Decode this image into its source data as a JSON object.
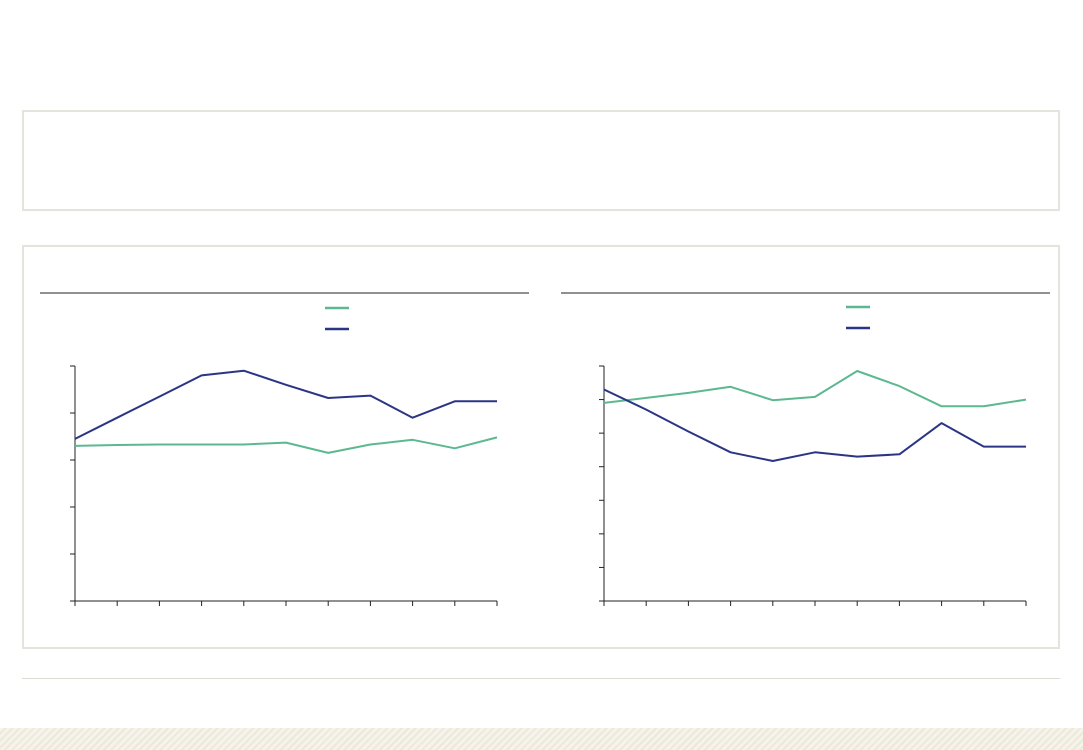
{
  "chart_data": [
    {
      "type": "line",
      "title": "",
      "xlabel": "",
      "ylabel": "",
      "x": [
        0,
        1,
        2,
        3,
        4,
        5,
        6,
        7,
        8,
        9,
        10
      ],
      "ylim": [
        0,
        5
      ],
      "yticks": [
        0,
        1,
        2,
        3,
        4,
        5
      ],
      "xtick_count": 11,
      "grid": false,
      "legend_position": "top-center",
      "series": [
        {
          "color": "#5cb890",
          "values": [
            3.3,
            3.32,
            3.33,
            3.33,
            3.33,
            3.37,
            3.15,
            3.33,
            3.43,
            3.25,
            3.48
          ]
        },
        {
          "color": "#2b3585",
          "values": [
            3.45,
            3.9,
            4.35,
            4.8,
            4.9,
            4.6,
            4.32,
            4.37,
            3.9,
            4.25,
            4.25
          ]
        }
      ]
    },
    {
      "type": "line",
      "title": "",
      "xlabel": "",
      "ylabel": "",
      "x": [
        0,
        1,
        2,
        3,
        4,
        5,
        6,
        7,
        8,
        9,
        10
      ],
      "ylim": [
        0,
        7
      ],
      "yticks": [
        0,
        1,
        2,
        3,
        4,
        5,
        6,
        7
      ],
      "xtick_count": 11,
      "grid": false,
      "legend_position": "top-center",
      "series": [
        {
          "color": "#5cb890",
          "values": [
            5.9,
            6.05,
            6.2,
            6.38,
            5.98,
            6.08,
            6.85,
            6.4,
            5.8,
            5.8,
            6.0
          ]
        },
        {
          "color": "#2b3585",
          "values": [
            6.3,
            5.7,
            5.05,
            4.43,
            4.17,
            4.43,
            4.3,
            4.37,
            5.3,
            4.6,
            4.6
          ]
        }
      ]
    }
  ]
}
